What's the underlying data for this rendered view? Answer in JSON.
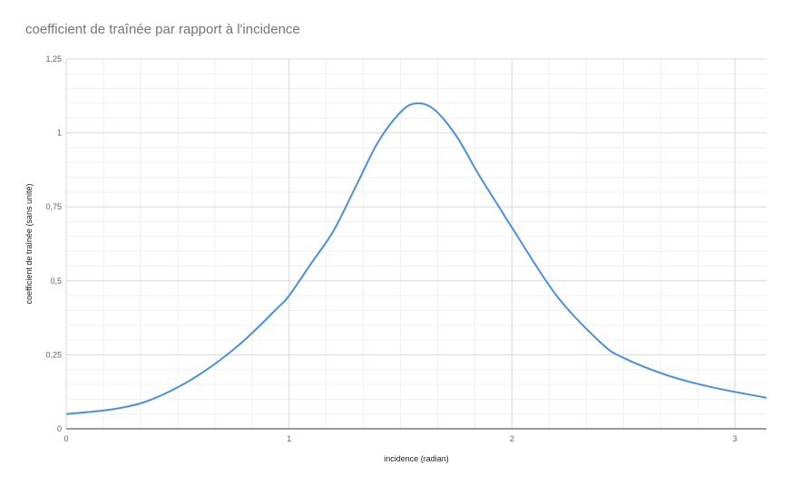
{
  "chart_data": {
    "type": "line",
    "title": "coefficient de traînée par rapport à l'incidence",
    "xlabel": "incidence (radian)",
    "ylabel": "coefficient de traînée (sans unité)",
    "xlim": [
      0,
      3.1416
    ],
    "ylim": [
      0,
      1.25
    ],
    "xticks": [
      0,
      1,
      2,
      3
    ],
    "xtick_labels": [
      "0",
      "1",
      "2",
      "3"
    ],
    "yticks": [
      0,
      0.25,
      0.5,
      0.75,
      1,
      1.25
    ],
    "ytick_labels": [
      "0",
      "0,25",
      "0,5",
      "0,75",
      "1",
      "1,25"
    ],
    "grid": true,
    "legend": "none",
    "series": [
      {
        "color": "#4a90e2",
        "x": [
          0,
          0.2,
          0.35,
          0.5,
          0.65,
          0.8,
          0.95,
          1.0,
          1.1,
          1.2,
          1.3,
          1.4,
          1.5,
          1.57,
          1.65,
          1.75,
          1.85,
          1.95,
          2.0,
          2.2,
          2.4,
          2.5,
          2.7,
          2.9,
          3.1416
        ],
        "y": [
          0.05,
          0.065,
          0.09,
          0.14,
          0.21,
          0.3,
          0.41,
          0.45,
          0.56,
          0.67,
          0.82,
          0.97,
          1.07,
          1.1,
          1.08,
          0.99,
          0.86,
          0.74,
          0.68,
          0.45,
          0.29,
          0.24,
          0.18,
          0.14,
          0.105
        ]
      }
    ]
  }
}
